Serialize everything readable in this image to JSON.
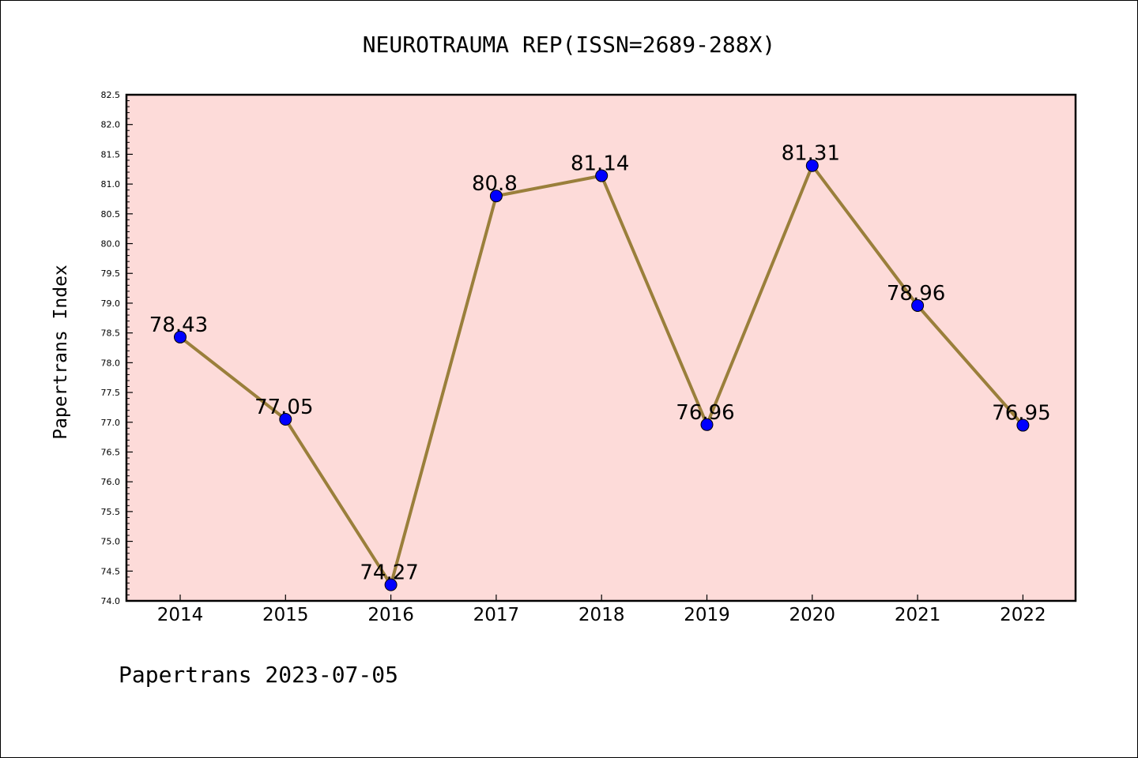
{
  "chart_data": {
    "type": "line",
    "title": "NEUROTRAUMA REP(ISSN=2689-288X)",
    "ylabel": "Papertrans Index",
    "xlabel": "",
    "x": [
      "2014",
      "2015",
      "2016",
      "2017",
      "2018",
      "2019",
      "2020",
      "2021",
      "2022"
    ],
    "series": [
      {
        "values": [
          78.43,
          77.05,
          74.27,
          80.8,
          81.14,
          76.96,
          81.31,
          78.96,
          76.95
        ],
        "labels": [
          "78.43",
          "77.05",
          "74.27",
          "80.8",
          "81.14",
          "76.96",
          "81.31",
          "78.96",
          "76.95"
        ]
      }
    ],
    "ylim": [
      74.0,
      82.5
    ],
    "yticks": [
      "74.0",
      "74.5",
      "75.0",
      "75.5",
      "76.0",
      "76.5",
      "77.0",
      "77.5",
      "78.0",
      "78.5",
      "79.0",
      "79.5",
      "80.0",
      "80.5",
      "81.0",
      "81.5",
      "82.0",
      "82.5"
    ],
    "grid": false,
    "colors": {
      "plot_background": "#FDDBD9",
      "line": "#9A7F3B",
      "marker": "#0000FF"
    }
  },
  "footer": "Papertrans 2023-07-05"
}
